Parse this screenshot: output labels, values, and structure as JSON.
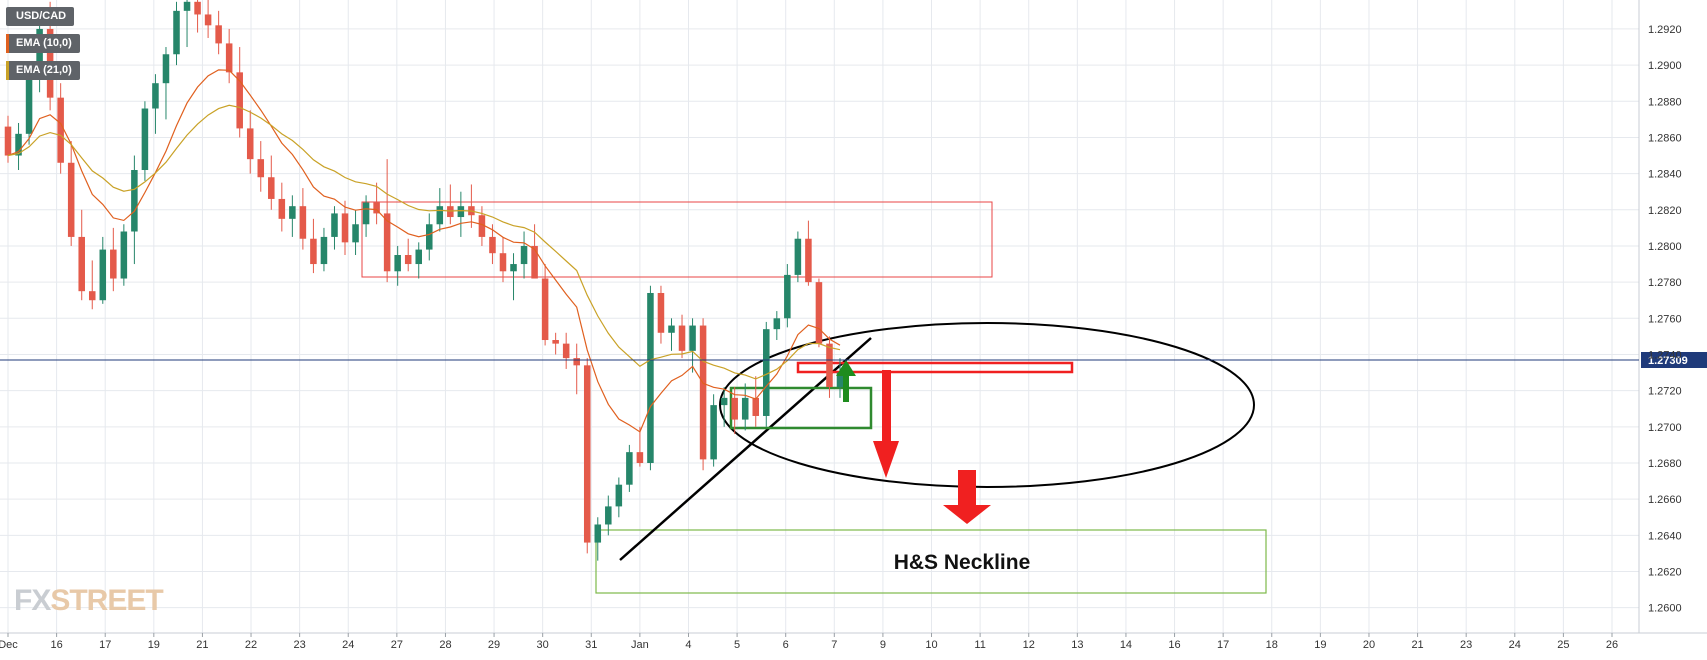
{
  "legend": {
    "symbol": "USD/CAD",
    "ema_short": "EMA (10,0)",
    "ema_long": "EMA (21,0)"
  },
  "watermark": {
    "part1": "FX",
    "part2": "STREET"
  },
  "colors": {
    "bull": "#26866a",
    "bear": "#e45a4a",
    "ema_short": "#e0601f",
    "ema_long": "#c9a227",
    "current_price_line": "#1f3a7a",
    "grid": "#e6e9ee",
    "zone_red": "#e84545",
    "zone_green": "#3b9a3b",
    "arrow_red": "#f02020",
    "arrow_green": "#1e8c1e",
    "trendline": "#000000",
    "ellipse": "#000000"
  },
  "chart_data": {
    "type": "candlestick",
    "instrument": "USD/CAD",
    "ylim": [
      1.2586,
      1.2936
    ],
    "y_ticks": [
      "1.2600",
      "1.2620",
      "1.2640",
      "1.2660",
      "1.2680",
      "1.2700",
      "1.2720",
      "1.2740",
      "1.2760",
      "1.2780",
      "1.2800",
      "1.2820",
      "1.2840",
      "1.2860",
      "1.2880",
      "1.2900",
      "1.2920"
    ],
    "x_labels": [
      "Dec",
      "16",
      "17",
      "19",
      "21",
      "22",
      "23",
      "24",
      "27",
      "28",
      "29",
      "30",
      "31",
      "Jan",
      "4",
      "5",
      "6",
      "7",
      "9",
      "10",
      "11",
      "12",
      "13",
      "14",
      "16",
      "17",
      "18",
      "19",
      "20",
      "21",
      "23",
      "24",
      "25",
      "26"
    ],
    "current_price": 1.27309,
    "current_price_label": "1.27309",
    "annotations": [
      "H&S Neckline"
    ],
    "candles_ohlc": [
      [
        1.2866,
        1.2872,
        1.2846,
        1.285
      ],
      [
        1.285,
        1.2868,
        1.2842,
        1.2862
      ],
      [
        1.2862,
        1.2898,
        1.2856,
        1.2892
      ],
      [
        1.2892,
        1.293,
        1.2885,
        1.292
      ],
      [
        1.292,
        1.2935,
        1.2875,
        1.2882
      ],
      [
        1.2882,
        1.289,
        1.284,
        1.2846
      ],
      [
        1.2846,
        1.2858,
        1.28,
        1.2805
      ],
      [
        1.2805,
        1.282,
        1.277,
        1.2775
      ],
      [
        1.2775,
        1.2792,
        1.2765,
        1.277
      ],
      [
        1.277,
        1.2805,
        1.2768,
        1.2798
      ],
      [
        1.2798,
        1.281,
        1.2775,
        1.2782
      ],
      [
        1.2782,
        1.2812,
        1.2778,
        1.2808
      ],
      [
        1.2808,
        1.285,
        1.279,
        1.2842
      ],
      [
        1.2842,
        1.288,
        1.2836,
        1.2876
      ],
      [
        1.2876,
        1.2895,
        1.2862,
        1.289
      ],
      [
        1.289,
        1.291,
        1.287,
        1.2906
      ],
      [
        1.2906,
        1.2935,
        1.29,
        1.293
      ],
      [
        1.293,
        1.294,
        1.291,
        1.2935
      ],
      [
        1.2935,
        1.294,
        1.2918,
        1.2928
      ],
      [
        1.2928,
        1.294,
        1.2915,
        1.2922
      ],
      [
        1.2922,
        1.293,
        1.2906,
        1.2912
      ],
      [
        1.2912,
        1.292,
        1.289,
        1.2896
      ],
      [
        1.2896,
        1.291,
        1.286,
        1.2865
      ],
      [
        1.2865,
        1.2875,
        1.284,
        1.2848
      ],
      [
        1.2848,
        1.2858,
        1.283,
        1.2838
      ],
      [
        1.2838,
        1.285,
        1.282,
        1.2826
      ],
      [
        1.2826,
        1.2835,
        1.2808,
        1.2815
      ],
      [
        1.2815,
        1.2828,
        1.2805,
        1.2822
      ],
      [
        1.2822,
        1.2832,
        1.2798,
        1.2804
      ],
      [
        1.2804,
        1.2815,
        1.2785,
        1.279
      ],
      [
        1.279,
        1.281,
        1.2786,
        1.2805
      ],
      [
        1.2805,
        1.2822,
        1.2798,
        1.2818
      ],
      [
        1.2818,
        1.2825,
        1.2795,
        1.2802
      ],
      [
        1.2802,
        1.282,
        1.2795,
        1.2812
      ],
      [
        1.2812,
        1.2828,
        1.2805,
        1.2824
      ],
      [
        1.2824,
        1.2835,
        1.2812,
        1.2818
      ],
      [
        1.2818,
        1.2848,
        1.278,
        1.2786
      ],
      [
        1.2786,
        1.28,
        1.2778,
        1.2795
      ],
      [
        1.2795,
        1.2804,
        1.2786,
        1.279
      ],
      [
        1.279,
        1.2802,
        1.2782,
        1.2798
      ],
      [
        1.2798,
        1.2818,
        1.2792,
        1.2812
      ],
      [
        1.2812,
        1.2832,
        1.2808,
        1.2822
      ],
      [
        1.2822,
        1.2834,
        1.2812,
        1.2816
      ],
      [
        1.2816,
        1.283,
        1.2805,
        1.2822
      ],
      [
        1.2822,
        1.2834,
        1.281,
        1.2817
      ],
      [
        1.2817,
        1.2822,
        1.28,
        1.2805
      ],
      [
        1.2805,
        1.2812,
        1.279,
        1.2796
      ],
      [
        1.2796,
        1.2805,
        1.278,
        1.2786
      ],
      [
        1.2786,
        1.2796,
        1.277,
        1.279
      ],
      [
        1.279,
        1.2808,
        1.2782,
        1.28
      ],
      [
        1.28,
        1.2812,
        1.2788,
        1.2782
      ],
      [
        1.2782,
        1.279,
        1.2745,
        1.2748
      ],
      [
        1.2748,
        1.2752,
        1.274,
        1.2746
      ],
      [
        1.2746,
        1.2752,
        1.2732,
        1.2738
      ],
      [
        1.2738,
        1.2746,
        1.2718,
        1.2734
      ],
      [
        1.2734,
        1.2738,
        1.263,
        1.2636
      ],
      [
        1.2636,
        1.265,
        1.2626,
        1.2646
      ],
      [
        1.2646,
        1.2662,
        1.264,
        1.2656
      ],
      [
        1.2656,
        1.2672,
        1.265,
        1.2668
      ],
      [
        1.2668,
        1.269,
        1.2664,
        1.2686
      ],
      [
        1.2686,
        1.27,
        1.2678,
        1.268
      ],
      [
        1.268,
        1.2778,
        1.2676,
        1.2774
      ],
      [
        1.2774,
        1.2778,
        1.2746,
        1.2752
      ],
      [
        1.2752,
        1.276,
        1.2742,
        1.2756
      ],
      [
        1.2756,
        1.2762,
        1.2738,
        1.2742
      ],
      [
        1.2742,
        1.276,
        1.273,
        1.2756
      ],
      [
        1.2756,
        1.276,
        1.2676,
        1.2682
      ],
      [
        1.2682,
        1.2718,
        1.2678,
        1.2712
      ],
      [
        1.2712,
        1.2722,
        1.27,
        1.2716
      ],
      [
        1.2716,
        1.2722,
        1.2696,
        1.2704
      ],
      [
        1.2704,
        1.2724,
        1.2698,
        1.2716
      ],
      [
        1.2716,
        1.2728,
        1.27,
        1.2706
      ],
      [
        1.2706,
        1.2758,
        1.27,
        1.2754
      ],
      [
        1.2754,
        1.2764,
        1.2748,
        1.276
      ],
      [
        1.276,
        1.279,
        1.2755,
        1.2784
      ],
      [
        1.2784,
        1.2808,
        1.278,
        1.2804
      ],
      [
        1.2804,
        1.2814,
        1.2778,
        1.278
      ],
      [
        1.278,
        1.2782,
        1.2744,
        1.2746
      ],
      [
        1.2746,
        1.275,
        1.2716,
        1.2722
      ],
      [
        1.2722,
        1.2738,
        1.2716,
        1.273
      ]
    ]
  }
}
